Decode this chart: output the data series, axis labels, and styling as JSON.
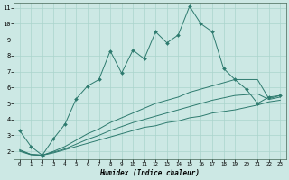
{
  "xlabel": "Humidex (Indice chaleur)",
  "bg_color": "#cce8e4",
  "grid_color": "#aad4cc",
  "line_color": "#2d7a6e",
  "xlim": [
    -0.5,
    23.5
  ],
  "ylim": [
    1.5,
    11.3
  ],
  "yticks": [
    2,
    3,
    4,
    5,
    6,
    7,
    8,
    9,
    10,
    11
  ],
  "xticks": [
    0,
    1,
    2,
    3,
    4,
    5,
    6,
    7,
    8,
    9,
    10,
    11,
    12,
    13,
    14,
    15,
    16,
    17,
    18,
    19,
    20,
    21,
    22,
    23
  ],
  "series1_x": [
    0,
    1,
    2,
    3,
    4,
    5,
    6,
    7,
    8,
    9,
    10,
    11,
    12,
    13,
    14,
    15,
    16,
    17,
    18,
    19,
    20,
    21,
    22,
    23
  ],
  "series1_y": [
    3.3,
    2.3,
    1.75,
    2.8,
    3.7,
    5.3,
    6.1,
    6.5,
    8.3,
    6.9,
    8.35,
    7.8,
    9.5,
    8.8,
    9.3,
    11.1,
    10.0,
    9.5,
    7.2,
    6.5,
    5.9,
    5.0,
    5.4,
    5.5
  ],
  "series2_x": [
    0,
    1,
    2,
    3,
    4,
    5,
    6,
    7,
    8,
    9,
    10,
    11,
    12,
    13,
    14,
    15,
    16,
    17,
    18,
    19,
    20,
    21,
    22,
    23
  ],
  "series2_y": [
    2.1,
    1.8,
    1.75,
    2.0,
    2.3,
    2.7,
    3.1,
    3.4,
    3.8,
    4.1,
    4.4,
    4.7,
    5.0,
    5.2,
    5.4,
    5.7,
    5.9,
    6.1,
    6.3,
    6.5,
    6.5,
    6.5,
    5.3,
    5.5
  ],
  "series3_x": [
    0,
    1,
    2,
    3,
    4,
    5,
    6,
    7,
    8,
    9,
    10,
    11,
    12,
    13,
    14,
    15,
    16,
    17,
    18,
    19,
    20,
    21,
    22,
    23
  ],
  "series3_y": [
    2.05,
    1.8,
    1.75,
    1.95,
    2.15,
    2.45,
    2.75,
    3.0,
    3.3,
    3.55,
    3.8,
    4.0,
    4.2,
    4.4,
    4.6,
    4.8,
    5.0,
    5.2,
    5.35,
    5.5,
    5.55,
    5.6,
    5.25,
    5.4
  ],
  "series4_x": [
    0,
    1,
    2,
    3,
    4,
    5,
    6,
    7,
    8,
    9,
    10,
    11,
    12,
    13,
    14,
    15,
    16,
    17,
    18,
    19,
    20,
    21,
    22,
    23
  ],
  "series4_y": [
    2.0,
    1.78,
    1.75,
    1.9,
    2.1,
    2.3,
    2.5,
    2.7,
    2.9,
    3.1,
    3.3,
    3.5,
    3.6,
    3.8,
    3.9,
    4.1,
    4.2,
    4.4,
    4.5,
    4.6,
    4.75,
    4.9,
    5.1,
    5.2
  ]
}
